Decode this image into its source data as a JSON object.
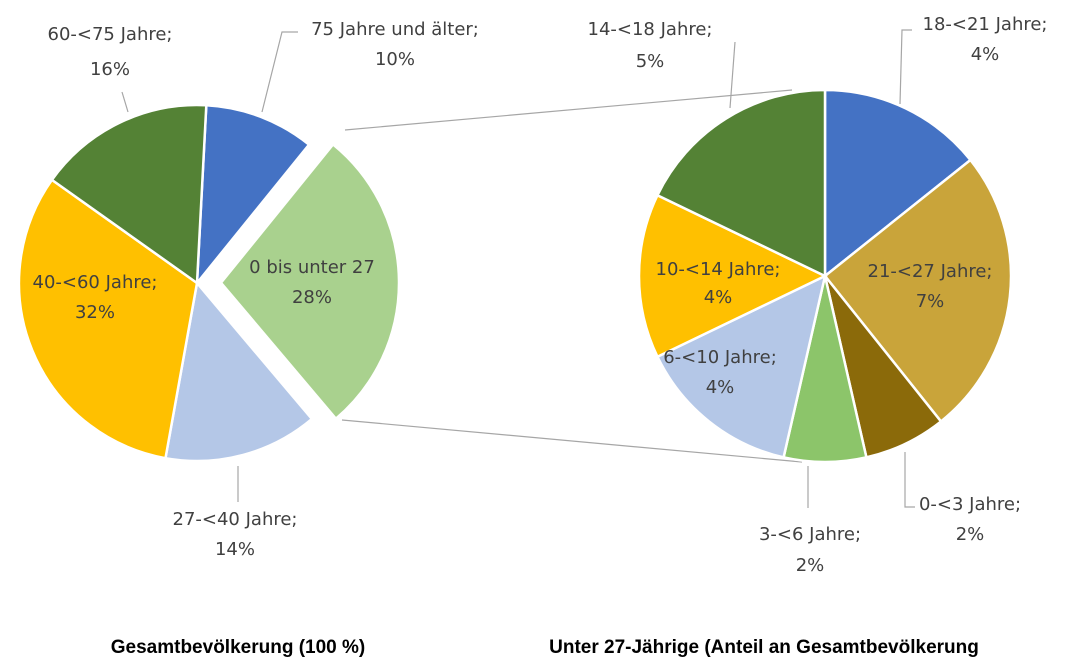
{
  "chart_data": [
    {
      "type": "pie",
      "title": "Gesamtbevölkerung (100 %)",
      "categories": [
        "75 Jahre und älter;",
        "0 bis unter 27",
        "27-<40 Jahre;",
        "40-<60 Jahre;",
        "60-<75 Jahre;"
      ],
      "values": [
        10,
        28,
        14,
        32,
        16
      ],
      "value_labels": [
        "10%",
        "28%",
        "14%",
        "32%",
        "16%"
      ],
      "colors": [
        "#4472c4",
        "#a9d18e",
        "#b4c7e7",
        "#ffc000",
        "#548235"
      ]
    },
    {
      "type": "pie",
      "title": "Unter 27-Jährige (Anteil an Gesamtbevölkerung",
      "categories": [
        "18-<21 Jahre;",
        "21-<27 Jahre;",
        "0-<3 Jahre;",
        "3-<6 Jahre;",
        "6-<10 Jahre;",
        "10-<14 Jahre;",
        "14-<18 Jahre;"
      ],
      "values": [
        4,
        7,
        2,
        2,
        4,
        4,
        5
      ],
      "value_labels": [
        "4%",
        "7%",
        "2%",
        "2%",
        "4%",
        "4%",
        "5%"
      ],
      "colors": [
        "#4472c4",
        "#c9a43a",
        "#8b6a0a",
        "#8cc56a",
        "#b4c7e7",
        "#ffc000",
        "#548235"
      ]
    }
  ]
}
